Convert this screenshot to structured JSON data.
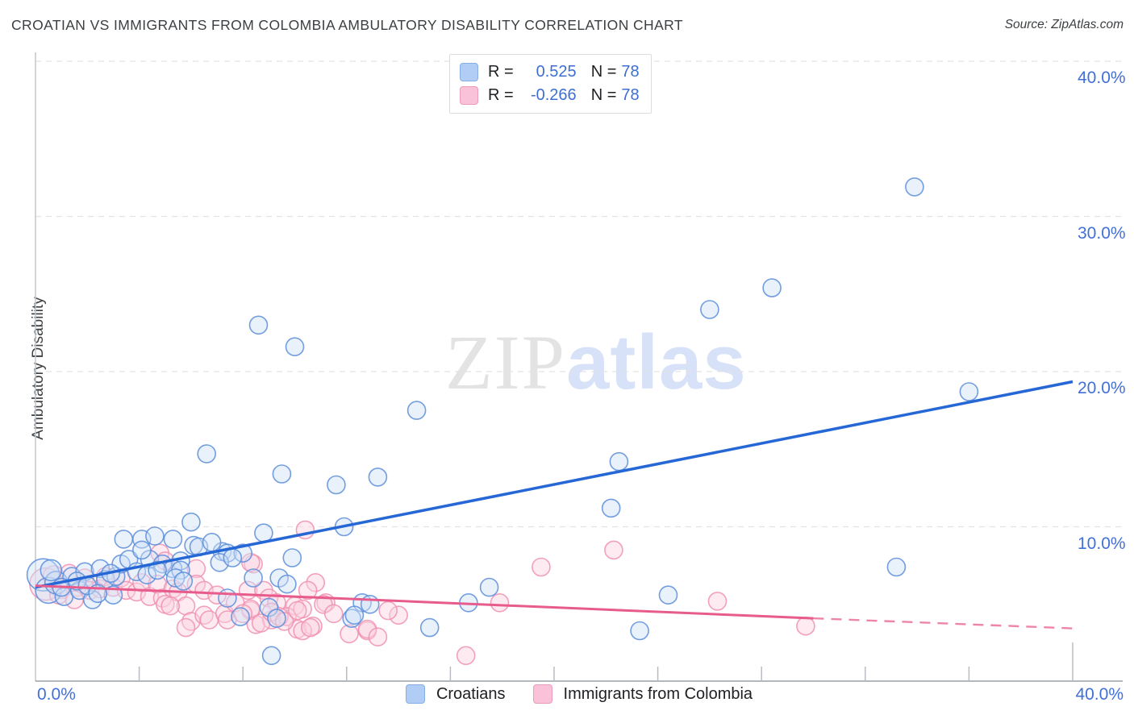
{
  "title": "CROATIAN VS IMMIGRANTS FROM COLOMBIA AMBULATORY DISABILITY CORRELATION CHART",
  "source": "Source: ZipAtlas.com",
  "watermark": {
    "zip": "ZIP",
    "atlas": "atlas"
  },
  "stats_legend": {
    "rows": [
      {
        "r_label": "R =",
        "r_value": "0.525",
        "n_label": "N =",
        "n_value": "78",
        "swatch_fill": "#b1cdf6",
        "swatch_border": "#85aee3"
      },
      {
        "r_label": "R =",
        "r_value": "-0.266",
        "n_label": "N =",
        "n_value": "78",
        "swatch_fill": "#f9c2d8",
        "swatch_border": "#eb9cba"
      }
    ]
  },
  "bottom_legend": [
    {
      "label": "Croatians",
      "swatch_fill": "#b1cdf6",
      "swatch_border": "#85aee3"
    },
    {
      "label": "Immigrants from Colombia",
      "swatch_fill": "#f9c2d8",
      "swatch_border": "#eb9cba"
    }
  ],
  "axes": {
    "y_label": "Ambulatory Disability",
    "y_ticks": [
      {
        "value": 10,
        "label": "10.0%"
      },
      {
        "value": 20,
        "label": "20.0%"
      },
      {
        "value": 30,
        "label": "30.0%"
      },
      {
        "value": 40,
        "label": "40.0%"
      }
    ],
    "x_min_label": "0.0%",
    "x_max_label": "40.0%",
    "x_range": [
      0,
      40
    ],
    "y_range": [
      0,
      40.6
    ],
    "x_tick_step": 4,
    "grid": "dashed-horizontal"
  },
  "chart_data": {
    "type": "scatter",
    "x_units": "percent",
    "y_units": "percent",
    "series": [
      {
        "name": "Croatians",
        "r": 0.525,
        "n": 78,
        "point_fill": "#cfe0f7",
        "point_stroke": "#5b8ddb",
        "trend_color": "#2667d6",
        "trend": {
          "x0": 0,
          "y0": 6.1,
          "x1": 40,
          "y1": 19.35,
          "dashed": false
        },
        "points": [
          [
            0.3,
            6.9,
            20
          ],
          [
            0.5,
            5.9,
            16
          ],
          [
            0.8,
            6.4,
            14
          ],
          [
            1.1,
            5.5
          ],
          [
            1.4,
            6.8
          ],
          [
            1.7,
            5.9
          ],
          [
            1.9,
            7.1
          ],
          [
            2.2,
            5.3
          ],
          [
            2.5,
            7.3
          ],
          [
            2.7,
            6.6
          ],
          [
            3.0,
            5.6
          ],
          [
            3.1,
            6.8
          ],
          [
            3.3,
            7.6
          ],
          [
            3.6,
            7.9
          ],
          [
            3.9,
            7.1
          ],
          [
            4.4,
            7.9
          ],
          [
            4.9,
            7.6
          ],
          [
            3.4,
            9.2
          ],
          [
            4.1,
            9.2
          ],
          [
            4.6,
            9.4
          ],
          [
            5.3,
            9.2
          ],
          [
            4.1,
            8.5
          ],
          [
            6.1,
            8.8
          ],
          [
            6.3,
            8.7
          ],
          [
            7.2,
            8.4
          ],
          [
            7.4,
            8.3
          ],
          [
            8.0,
            8.3
          ],
          [
            9.9,
            8.0
          ],
          [
            5.6,
            7.8
          ],
          [
            7.1,
            7.7
          ],
          [
            7.6,
            8.0
          ],
          [
            5.3,
            7.3
          ],
          [
            5.6,
            7.2
          ],
          [
            5.4,
            6.7
          ],
          [
            5.7,
            6.5
          ],
          [
            8.4,
            6.7
          ],
          [
            9.4,
            6.7
          ],
          [
            9.7,
            6.3
          ],
          [
            7.4,
            5.4
          ],
          [
            9.0,
            4.8
          ],
          [
            7.9,
            4.2
          ],
          [
            9.3,
            4.1
          ],
          [
            12.6,
            5.1
          ],
          [
            12.9,
            5.0
          ],
          [
            12.2,
            4.1
          ],
          [
            12.3,
            4.3
          ],
          [
            15.2,
            3.5
          ],
          [
            16.7,
            5.1
          ],
          [
            17.5,
            6.1
          ],
          [
            24.4,
            5.6
          ],
          [
            23.3,
            3.3
          ],
          [
            9.1,
            1.7
          ],
          [
            33.2,
            7.4
          ],
          [
            33.9,
            31.9
          ],
          [
            28.4,
            25.4
          ],
          [
            26.0,
            24.0
          ],
          [
            8.6,
            23.0
          ],
          [
            10.0,
            21.6
          ],
          [
            36.0,
            18.7
          ],
          [
            14.7,
            17.5
          ],
          [
            6.6,
            14.7
          ],
          [
            9.5,
            13.4
          ],
          [
            22.5,
            14.2
          ],
          [
            22.2,
            11.2
          ],
          [
            13.2,
            13.2
          ],
          [
            11.6,
            12.7
          ],
          [
            6.0,
            10.3
          ],
          [
            11.9,
            10.0
          ],
          [
            8.8,
            9.6
          ],
          [
            0.6,
            7.2,
            13
          ],
          [
            1.0,
            6.1
          ],
          [
            1.6,
            6.5
          ],
          [
            2.0,
            6.2
          ],
          [
            2.4,
            5.7
          ],
          [
            2.9,
            7.0
          ],
          [
            4.3,
            6.9
          ],
          [
            4.7,
            7.2
          ],
          [
            6.8,
            9.0
          ]
        ]
      },
      {
        "name": "Immigrants from Colombia",
        "r": -0.266,
        "n": 78,
        "point_fill": "#fbd3e0",
        "point_stroke": "#f090b2",
        "trend_color": "#e75c8d",
        "trend": {
          "x0": 0,
          "y0": 6.2,
          "x1": 30,
          "y1": 4.1,
          "dashed": false
        },
        "trend_ext": {
          "x0": 30,
          "y0": 4.1,
          "x1": 40,
          "y1": 3.45,
          "dashed": true
        },
        "points": [
          [
            0.4,
            6.3,
            20
          ],
          [
            0.7,
            6.8,
            13
          ],
          [
            1.0,
            6.0,
            12
          ],
          [
            1.3,
            7.0
          ],
          [
            1.6,
            6.1
          ],
          [
            1.9,
            6.7
          ],
          [
            2.1,
            5.9
          ],
          [
            2.5,
            6.0
          ],
          [
            2.7,
            6.8
          ],
          [
            3.0,
            6.1
          ],
          [
            3.3,
            6.7
          ],
          [
            3.5,
            5.9
          ],
          [
            3.9,
            5.8
          ],
          [
            4.1,
            6.4
          ],
          [
            4.4,
            5.5
          ],
          [
            4.7,
            6.3
          ],
          [
            4.9,
            5.4
          ],
          [
            5.3,
            6.0
          ],
          [
            0.9,
            5.6
          ],
          [
            1.5,
            5.3
          ],
          [
            6.2,
            7.3
          ],
          [
            8.4,
            7.6
          ],
          [
            6.2,
            6.3
          ],
          [
            6.5,
            5.9
          ],
          [
            5.5,
            5.8
          ],
          [
            5.0,
            5.0
          ],
          [
            5.8,
            4.9
          ],
          [
            5.2,
            4.9
          ],
          [
            6.0,
            3.9
          ],
          [
            5.8,
            3.5
          ],
          [
            6.5,
            4.3
          ],
          [
            6.7,
            4.0
          ],
          [
            7.3,
            4.4
          ],
          [
            7.4,
            4.0
          ],
          [
            8.2,
            5.9
          ],
          [
            8.3,
            4.6
          ],
          [
            8.8,
            5.9
          ],
          [
            9.0,
            5.4
          ],
          [
            9.3,
            5.1
          ],
          [
            10.0,
            4.9
          ],
          [
            8.5,
            3.7
          ],
          [
            9.1,
            4.0
          ],
          [
            9.7,
            4.2
          ],
          [
            10.8,
            6.4
          ],
          [
            10.5,
            5.9
          ],
          [
            11.2,
            5.1
          ],
          [
            10.3,
            4.7
          ],
          [
            10.1,
            3.4
          ],
          [
            10.7,
            3.6
          ],
          [
            12.1,
            3.1
          ],
          [
            12.8,
            3.3
          ],
          [
            14.0,
            4.3
          ],
          [
            16.6,
            1.7
          ],
          [
            8.3,
            4.7
          ],
          [
            8.7,
            3.8
          ],
          [
            9.1,
            4.5
          ],
          [
            9.4,
            4.2
          ],
          [
            9.6,
            3.9
          ],
          [
            10.1,
            4.6
          ],
          [
            10.3,
            3.3
          ],
          [
            10.6,
            3.5
          ],
          [
            11.1,
            5.0
          ],
          [
            12.8,
            3.4
          ],
          [
            13.6,
            4.6
          ],
          [
            10.4,
            9.8
          ],
          [
            19.5,
            7.4
          ],
          [
            22.3,
            8.5
          ],
          [
            17.9,
            5.1
          ],
          [
            26.3,
            5.2
          ],
          [
            29.7,
            3.6
          ],
          [
            4.8,
            8.3
          ],
          [
            5.0,
            7.8
          ],
          [
            8.3,
            7.7
          ],
          [
            7.0,
            5.6
          ],
          [
            7.7,
            5.1
          ],
          [
            8.0,
            4.4
          ],
          [
            11.5,
            4.4
          ],
          [
            13.2,
            2.9
          ]
        ]
      }
    ]
  },
  "colors": {
    "axis_line": "#9aa0a6",
    "gridline": "#e3e3e3",
    "tick_label_blue": "#4170d8",
    "blue_trend": "#2667d6",
    "pink_trend": "#e75c8d"
  }
}
